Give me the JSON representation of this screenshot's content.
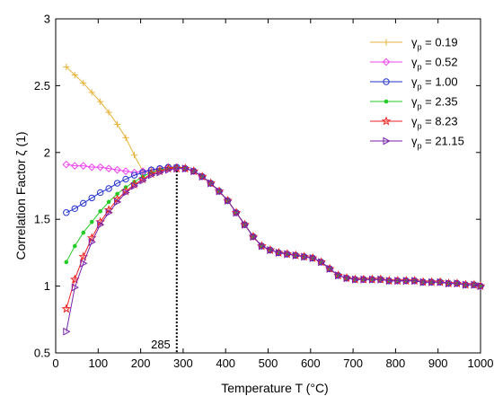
{
  "chart_data": {
    "type": "line",
    "xlabel": "Temperature T (°C)",
    "ylabel": "Correlation Factor ζ (1)",
    "xlim": [
      0,
      1000
    ],
    "ylim": [
      0.5,
      3
    ],
    "xticks": [
      "0",
      "100",
      "200",
      "300",
      "400",
      "500",
      "600",
      "700",
      "800",
      "900",
      "1000"
    ],
    "yticks": [
      "0.5",
      "1",
      "1.5",
      "2",
      "2.5",
      "3"
    ],
    "grid": false,
    "legend_position": "top-right",
    "annotation": {
      "label": "285",
      "x": 285,
      "y": 1.89
    },
    "series": [
      {
        "name": "0.19",
        "legend_symbol": "γ",
        "legend_subscript": "p",
        "color": "#E8B33A",
        "marker": "plus",
        "x": [
          25,
          45,
          65,
          85,
          105,
          125,
          145,
          165,
          185,
          205,
          225,
          245,
          265,
          285
        ],
        "y": [
          2.64,
          2.58,
          2.52,
          2.45,
          2.38,
          2.3,
          2.21,
          2.11,
          1.98,
          1.86,
          1.87,
          1.88,
          1.89,
          1.89
        ]
      },
      {
        "name": "0.52",
        "legend_symbol": "γ",
        "legend_subscript": "p",
        "color": "#EE44EE",
        "marker": "diamond",
        "x": [
          25,
          45,
          65,
          85,
          105,
          125,
          145,
          165,
          185,
          205,
          225,
          245,
          265,
          285
        ],
        "y": [
          1.91,
          1.9,
          1.9,
          1.89,
          1.89,
          1.88,
          1.87,
          1.86,
          1.85,
          1.86,
          1.87,
          1.88,
          1.89,
          1.89
        ]
      },
      {
        "name": "1.00",
        "legend_symbol": "γ",
        "legend_subscript": "p",
        "color": "#2233CC",
        "marker": "circle",
        "x": [
          25,
          45,
          65,
          85,
          105,
          125,
          145,
          165,
          185,
          205,
          225,
          245,
          265,
          285
        ],
        "y": [
          1.55,
          1.58,
          1.62,
          1.66,
          1.7,
          1.73,
          1.77,
          1.8,
          1.83,
          1.85,
          1.87,
          1.88,
          1.89,
          1.89
        ]
      },
      {
        "name": "2.35",
        "legend_symbol": "γ",
        "legend_subscript": "p",
        "color": "#22CC22",
        "marker": "dot",
        "x": [
          25,
          45,
          65,
          85,
          105,
          125,
          145,
          165,
          185,
          205,
          225,
          245,
          265,
          285
        ],
        "y": [
          1.18,
          1.3,
          1.4,
          1.48,
          1.56,
          1.63,
          1.69,
          1.74,
          1.78,
          1.82,
          1.85,
          1.87,
          1.88,
          1.89
        ]
      },
      {
        "name": "8.23",
        "legend_symbol": "γ",
        "legend_subscript": "p",
        "color": "#EE2222",
        "marker": "star",
        "x": [
          25,
          45,
          65,
          85,
          105,
          125,
          145,
          165,
          185,
          205,
          225,
          245,
          265,
          285
        ],
        "y": [
          0.83,
          1.05,
          1.22,
          1.36,
          1.48,
          1.57,
          1.65,
          1.71,
          1.76,
          1.8,
          1.84,
          1.86,
          1.88,
          1.88
        ]
      },
      {
        "name": "21.15",
        "legend_symbol": "γ",
        "legend_subscript": "p",
        "color": "#7722AA",
        "marker": "triangle-right",
        "x": [
          25,
          45,
          65,
          85,
          105,
          125,
          145,
          165,
          185,
          205,
          225,
          245,
          265,
          285
        ],
        "y": [
          0.66,
          0.99,
          1.17,
          1.33,
          1.46,
          1.55,
          1.63,
          1.7,
          1.75,
          1.79,
          1.83,
          1.85,
          1.87,
          1.88
        ]
      }
    ],
    "shared_tail": {
      "x": [
        305,
        325,
        345,
        365,
        385,
        405,
        425,
        445,
        465,
        485,
        505,
        525,
        545,
        565,
        585,
        605,
        625,
        645,
        665,
        685,
        705,
        725,
        745,
        765,
        785,
        805,
        825,
        845,
        865,
        885,
        905,
        925,
        945,
        965,
        985,
        1000
      ],
      "y": [
        1.88,
        1.86,
        1.82,
        1.77,
        1.71,
        1.64,
        1.55,
        1.46,
        1.37,
        1.3,
        1.27,
        1.25,
        1.24,
        1.23,
        1.22,
        1.21,
        1.18,
        1.13,
        1.08,
        1.06,
        1.05,
        1.05,
        1.05,
        1.05,
        1.04,
        1.04,
        1.04,
        1.04,
        1.03,
        1.03,
        1.03,
        1.02,
        1.02,
        1.01,
        1.01,
        1.0
      ]
    }
  }
}
